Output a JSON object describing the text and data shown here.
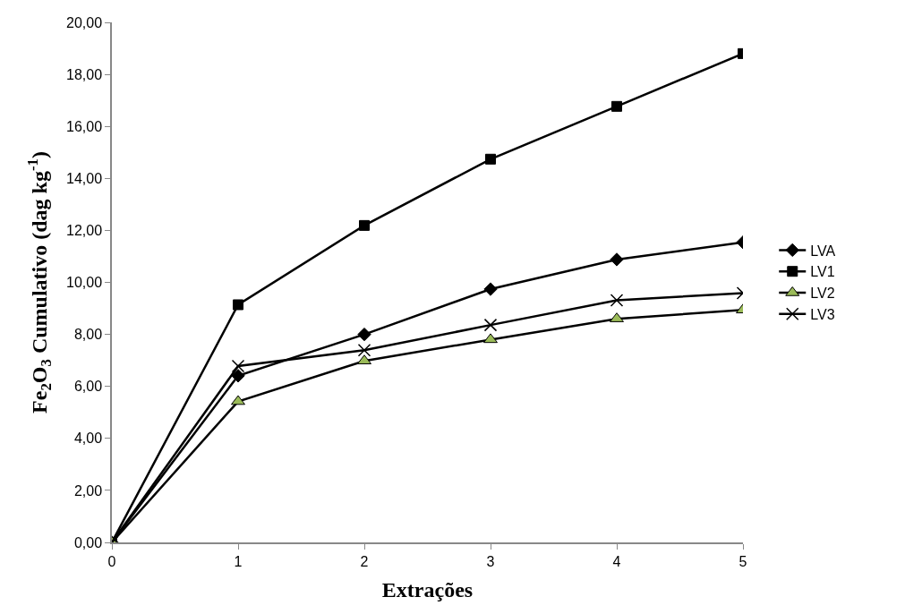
{
  "chart_data": {
    "type": "line",
    "xlabel": "Extrações",
    "ylabel": "Fe$_{2}$O$_{3}$ Cumulativo (dag kg$^{-1}$)",
    "x": [
      0,
      1,
      2,
      3,
      4,
      5
    ],
    "series": [
      {
        "name": "LVA",
        "color": "#000000",
        "marker": "diamond",
        "values": [
          0,
          6.41,
          8.0,
          9.74,
          10.88,
          11.54
        ]
      },
      {
        "name": "LV1",
        "color": "#000000",
        "marker": "square",
        "values": [
          0,
          9.14,
          12.19,
          14.74,
          16.77,
          18.8
        ]
      },
      {
        "name": "LV2",
        "color": "#9bbb59",
        "marker": "triangle",
        "values": [
          0,
          5.42,
          6.98,
          7.8,
          8.6,
          8.94
        ]
      },
      {
        "name": "LV3",
        "color": "#000000",
        "marker": "cross",
        "values": [
          0,
          6.78,
          7.39,
          8.36,
          9.31,
          9.59
        ]
      }
    ],
    "xlim": [
      0,
      5
    ],
    "xticks": [
      0,
      1,
      2,
      3,
      4,
      5
    ],
    "ylim": [
      0,
      20
    ],
    "yticks": [
      {
        "value": 0,
        "label": "0,00"
      },
      {
        "value": 2,
        "label": "2,00"
      },
      {
        "value": 4,
        "label": "4,00"
      },
      {
        "value": 6,
        "label": "6,00"
      },
      {
        "value": 8,
        "label": "8,00"
      },
      {
        "value": 10,
        "label": "10,00"
      },
      {
        "value": 12,
        "label": "12,00"
      },
      {
        "value": 14,
        "label": "14,00"
      },
      {
        "value": 16,
        "label": "16,00"
      },
      {
        "value": 18,
        "label": "18,00"
      },
      {
        "value": 20,
        "label": "20,00"
      }
    ],
    "legend": "right"
  }
}
